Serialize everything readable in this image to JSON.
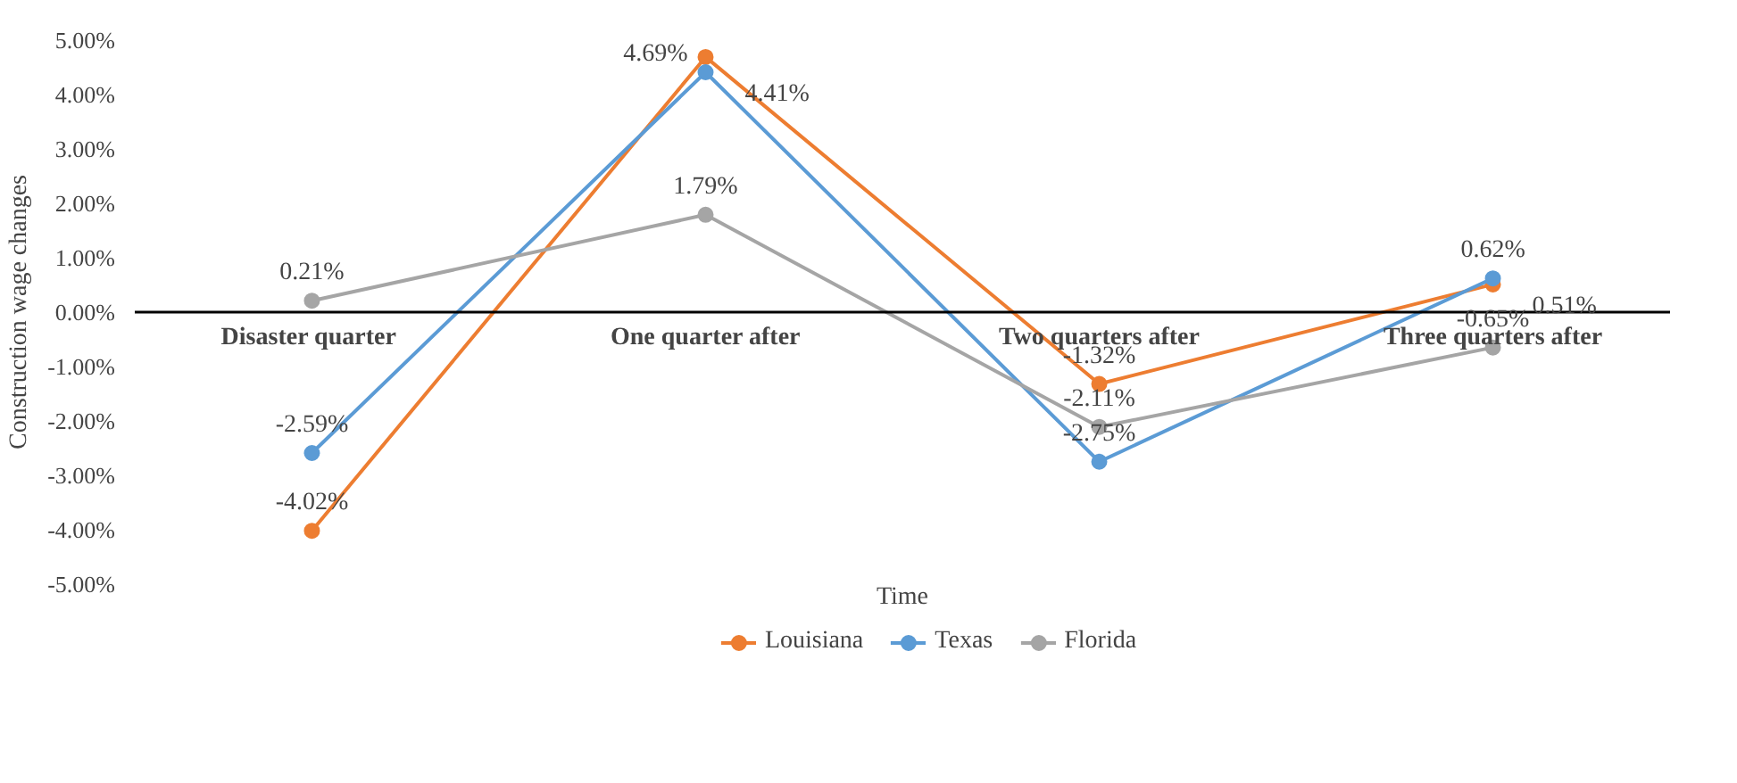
{
  "chart_data": {
    "type": "line",
    "xlabel": "Time",
    "ylabel": "Construction wage changes",
    "categories": [
      "Disaster  quarter",
      "One quarter after",
      "Two quarters after",
      "Three quarters after"
    ],
    "series": [
      {
        "name": "Louisiana",
        "color": "#ed7d31",
        "values": [
          -4.02,
          4.69,
          -1.32,
          0.51
        ]
      },
      {
        "name": "Texas",
        "color": "#5b9bd5",
        "values": [
          -2.59,
          4.41,
          -2.75,
          0.62
        ]
      },
      {
        "name": "Florida",
        "color": "#a5a5a5",
        "values": [
          0.21,
          1.79,
          -2.11,
          -0.65
        ]
      }
    ],
    "ylim": [
      -5,
      5
    ],
    "yticks": [
      {
        "value": -5,
        "label": "-5.00%"
      },
      {
        "value": -4,
        "label": "-4.00%"
      },
      {
        "value": -3,
        "label": "-3.00%"
      },
      {
        "value": -2,
        "label": "-2.00%"
      },
      {
        "value": -1,
        "label": "-1.00%"
      },
      {
        "value": 0,
        "label": "0.00%"
      },
      {
        "value": 1,
        "label": "1.00%"
      },
      {
        "value": 2,
        "label": "2.00%"
      },
      {
        "value": 3,
        "label": "3.00%"
      },
      {
        "value": 4,
        "label": "4.00%"
      },
      {
        "value": 5,
        "label": "5.00%"
      }
    ],
    "value_labels": [
      [
        "-4.02%",
        "4.69%",
        "-1.32%",
        "0.51%"
      ],
      [
        "-2.59%",
        "4.41%",
        "-2.75%",
        "0.62%"
      ],
      [
        "0.21%",
        "1.79%",
        "-2.11%",
        "-0.65%"
      ]
    ],
    "marker": "circle",
    "line_style": "solid",
    "legend": "bottom",
    "grid": false
  }
}
